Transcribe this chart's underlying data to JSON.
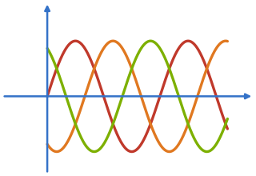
{
  "background_color": "#ffffff",
  "axis_color": "#3472c8",
  "wave_colors": [
    "#c0392b",
    "#e07820",
    "#7db000"
  ],
  "line_width": 2.4,
  "amplitude": 1.0,
  "phase_shift_deg": 120,
  "x_wave_start": 0.0,
  "x_wave_end": 4.8,
  "x_axis_min": -1.2,
  "x_axis_max": 5.5,
  "y_axis_min": -1.4,
  "y_axis_max": 1.7,
  "y_origin": 0.0,
  "x_origin": 0.0,
  "period": 3.0,
  "figsize": [
    3.2,
    2.2
  ],
  "dpi": 100
}
